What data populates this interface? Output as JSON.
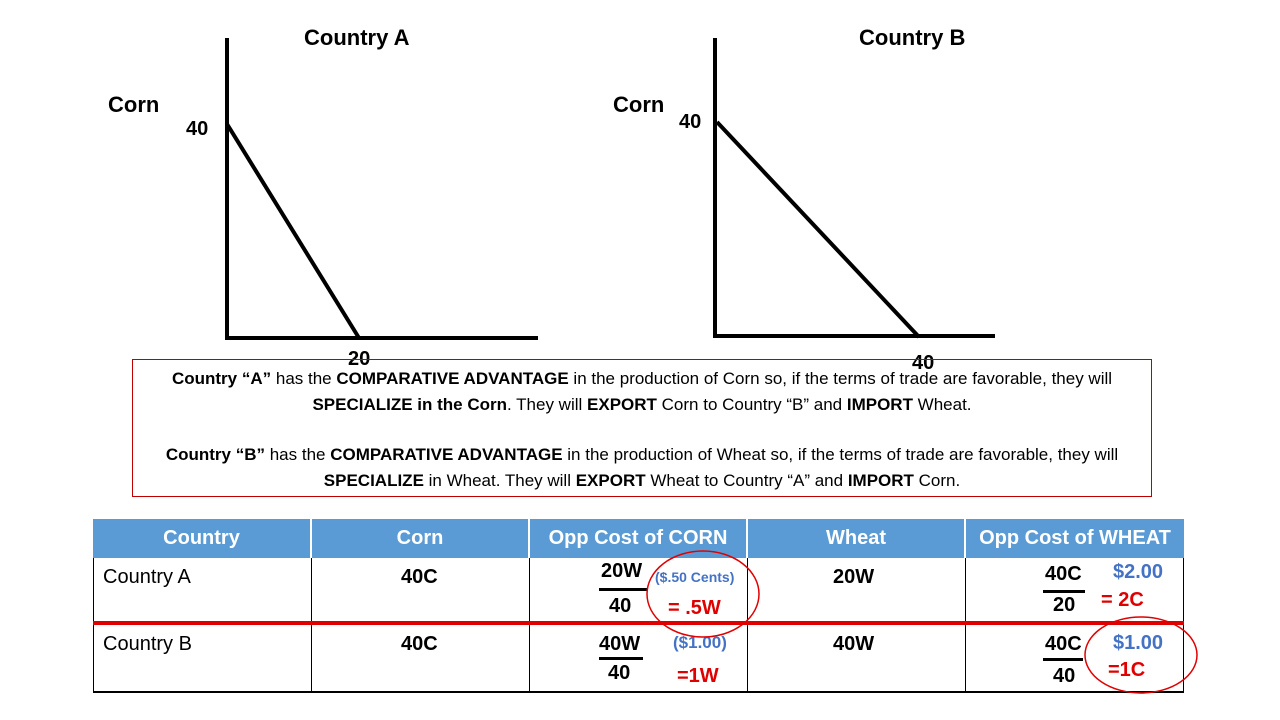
{
  "graph_a": {
    "title": "Country A",
    "y_label": "Corn",
    "y_intercept_label": "40",
    "x_intercept_label": "20"
  },
  "graph_b": {
    "title": "Country B",
    "y_label": "Corn",
    "y_intercept_label": "40",
    "x_intercept_label": "40"
  },
  "explain": {
    "para1": [
      {
        "t": "Country  “A”",
        "b": true
      },
      {
        "t": " has the ",
        "b": false
      },
      {
        "t": "COMPARATIVE ADVANTAGE",
        "b": true
      },
      {
        "t": "  in the production of Corn so, if the terms of trade are favorable, they will ",
        "b": false
      },
      {
        "t": "SPECIALIZE in the Corn",
        "b": true
      },
      {
        "t": ".  They will ",
        "b": false
      },
      {
        "t": "EXPORT",
        "b": true
      },
      {
        "t": " Corn to Country “B” and ",
        "b": false
      },
      {
        "t": "IMPORT",
        "b": true
      },
      {
        "t": " Wheat.",
        "b": false
      }
    ],
    "para2": [
      {
        "t": "Country  “B”",
        "b": true
      },
      {
        "t": " has the ",
        "b": false
      },
      {
        "t": "COMPARATIVE ADVANTAGE",
        "b": true
      },
      {
        "t": " in the production of Wheat so, if the terms of trade are favorable, they will ",
        "b": false
      },
      {
        "t": "SPECIALIZE",
        "b": true
      },
      {
        "t": " in Wheat.  They will ",
        "b": false
      },
      {
        "t": "EXPORT",
        "b": true
      },
      {
        "t": " Wheat to Country “A” and ",
        "b": false
      },
      {
        "t": "IMPORT",
        "b": true
      },
      {
        "t": " Corn.",
        "b": false
      }
    ]
  },
  "table": {
    "headers": [
      "Country",
      "Corn",
      "Opp Cost of CORN",
      "Wheat",
      "Opp Cost of WHEAT"
    ],
    "rows": [
      {
        "country": "Country A",
        "corn": "40C",
        "opp_corn_num": "20W",
        "opp_corn_den": "40",
        "opp_corn_note": "($.50 Cents)",
        "opp_corn_result": "= .5W",
        "wheat": "20W",
        "opp_wheat_num": "40C",
        "opp_wheat_den": "20",
        "opp_wheat_note": "$2.00",
        "opp_wheat_result": "= 2C"
      },
      {
        "country": "Country B",
        "corn": "40C",
        "opp_corn_num": "40W",
        "opp_corn_den": "40",
        "opp_corn_note": "($1.00)",
        "opp_corn_result": "=1W",
        "wheat": "40W",
        "opp_wheat_num": "40C",
        "opp_wheat_den": "40",
        "opp_wheat_note": "$1.00",
        "opp_wheat_result": "=1C"
      }
    ]
  },
  "colors": {
    "header_bg": "#5b9bd5",
    "accent_red": "#e00000",
    "note_blue": "#4472c4",
    "box_border": "#c00000"
  }
}
